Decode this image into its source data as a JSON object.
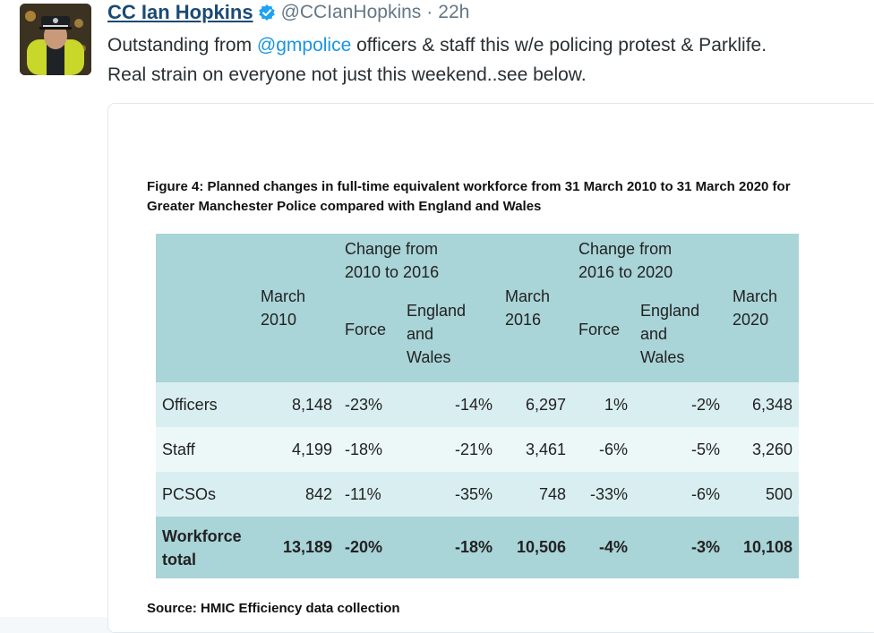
{
  "tweet": {
    "author_name": "CC Ian Hopkins",
    "handle": "@CCIanHopkins",
    "separator": "·",
    "time": "22h",
    "text_before": "Outstanding from ",
    "mention": "@gmpolice",
    "text_after": " officers & staff this w/e policing protest & Parklife.",
    "text_line2": "Real strain on everyone not just this weekend..see below.",
    "avatar_icon": "police-officer-avatar",
    "verified_icon": "verified-badge-icon",
    "colors": {
      "name": "#1a4a73",
      "mention": "#1b95e0",
      "table_header": "#a9d4d8"
    }
  },
  "figure": {
    "title": "Figure 4: Planned changes in full-time equivalent workforce from 31 March 2010 to 31 March 2020 for Greater Manchester Police compared with England and Wales",
    "source": "Source: HMIC Efficiency data collection",
    "headers": {
      "march2010": [
        "March",
        "2010"
      ],
      "change1": [
        "Change from",
        "2010 to 2016"
      ],
      "march2016": [
        "March",
        "2016"
      ],
      "change2": [
        "Change from",
        "2016 to 2020"
      ],
      "march2020": [
        "March",
        "2020"
      ],
      "force": "Force",
      "ew": [
        "England",
        "and",
        "Wales"
      ]
    },
    "rows": [
      {
        "label": "Officers",
        "m2010": "8,148",
        "f1": "-23%",
        "ew1": "-14%",
        "m2016": "6,297",
        "f2": "1%",
        "ew2": "-2%",
        "m2020": "6,348"
      },
      {
        "label": "Staff",
        "m2010": "4,199",
        "f1": "-18%",
        "ew1": "-21%",
        "m2016": "3,461",
        "f2": "-6%",
        "ew2": "-5%",
        "m2020": "3,260"
      },
      {
        "label": "PCSOs",
        "m2010": "842",
        "f1": "-11%",
        "ew1": "-35%",
        "m2016": "748",
        "f2": "-33%",
        "ew2": "-6%",
        "m2020": "500"
      }
    ],
    "total": {
      "label": [
        "Workforce",
        "total"
      ],
      "m2010": "13,189",
      "f1": "-20%",
      "ew1": "-18%",
      "m2016": "10,506",
      "f2": "-4%",
      "ew2": "-3%",
      "m2020": "10,108"
    }
  }
}
